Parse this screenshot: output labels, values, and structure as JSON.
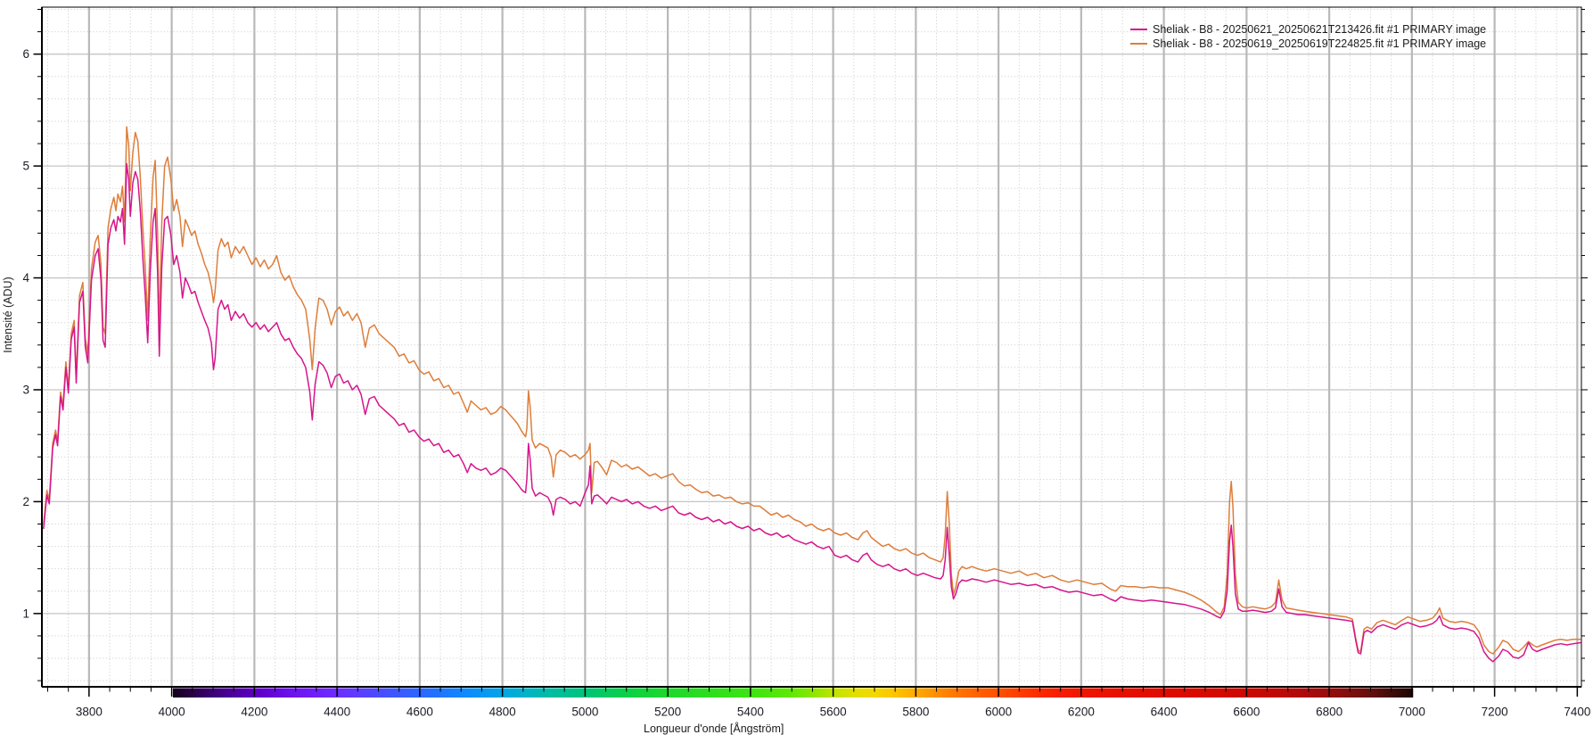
{
  "chart_data": {
    "type": "line",
    "title": "",
    "xlabel": "Longueur d'onde [Ångström]",
    "ylabel": "Intensité (ADU)",
    "xlim": [
      3686,
      7410
    ],
    "ylim": [
      0.345,
      6.42
    ],
    "x_major_step": 200,
    "x_minor_step": 50,
    "y_major_step": 1,
    "y_minor_step": 0.2,
    "x_ticks": [
      3800,
      4000,
      4200,
      4400,
      4600,
      4800,
      5000,
      5200,
      5400,
      5600,
      5800,
      6000,
      6200,
      6400,
      6600,
      6800,
      7000,
      7200,
      7400
    ],
    "y_ticks": [
      1,
      2,
      3,
      4,
      5,
      6
    ],
    "grid": {
      "major_v_color": "#b9b9b9",
      "major_h_color": "#c6c6c6",
      "minor_color": "#d2d2d2",
      "style": "major-solid-minor-dotted"
    },
    "legend_position": "top-right",
    "axis_color": "#000000",
    "tick_label_color": "#1b1b24",
    "x": [
      3690,
      3698,
      3704,
      3712,
      3719,
      3724,
      3731,
      3737,
      3744,
      3750,
      3757,
      3764,
      3769,
      3777,
      3785,
      3791,
      3797,
      3806,
      3815,
      3822,
      3829,
      3834,
      3839,
      3846,
      3853,
      3860,
      3865,
      3870,
      3876,
      3881,
      3886,
      3891,
      3896,
      3900,
      3906,
      3912,
      3918,
      3924,
      3930,
      3936,
      3942,
      3948,
      3955,
      3960,
      3966,
      3970,
      3976,
      3983,
      3990,
      3998,
      4005,
      4012,
      4020,
      4026,
      4033,
      4040,
      4048,
      4056,
      4064,
      4072,
      4080,
      4088,
      4096,
      4101,
      4105,
      4112,
      4120,
      4128,
      4136,
      4144,
      4154,
      4164,
      4174,
      4184,
      4194,
      4204,
      4214,
      4224,
      4234,
      4244,
      4254,
      4264,
      4274,
      4284,
      4294,
      4304,
      4314,
      4324,
      4334,
      4340,
      4347,
      4356,
      4366,
      4376,
      4386,
      4396,
      4406,
      4416,
      4426,
      4437,
      4448,
      4458,
      4468,
      4478,
      4490,
      4502,
      4514,
      4526,
      4538,
      4550,
      4562,
      4574,
      4586,
      4598,
      4610,
      4622,
      4634,
      4646,
      4658,
      4670,
      4682,
      4694,
      4706,
      4715,
      4724,
      4736,
      4748,
      4760,
      4772,
      4784,
      4796,
      4808,
      4822,
      4836,
      4848,
      4856,
      4859,
      4863,
      4867,
      4872,
      4880,
      4890,
      4900,
      4910,
      4918,
      4923,
      4930,
      4940,
      4952,
      4964,
      4976,
      4988,
      5000,
      5008,
      5012,
      5016,
      5022,
      5030,
      5042,
      5052,
      5064,
      5076,
      5088,
      5100,
      5114,
      5128,
      5142,
      5156,
      5170,
      5184,
      5198,
      5212,
      5226,
      5240,
      5254,
      5268,
      5282,
      5296,
      5310,
      5324,
      5338,
      5352,
      5366,
      5380,
      5394,
      5408,
      5422,
      5436,
      5450,
      5464,
      5478,
      5492,
      5506,
      5520,
      5534,
      5548,
      5562,
      5576,
      5590,
      5604,
      5618,
      5632,
      5646,
      5660,
      5672,
      5682,
      5692,
      5706,
      5720,
      5734,
      5748,
      5762,
      5776,
      5790,
      5804,
      5818,
      5832,
      5846,
      5860,
      5866,
      5871,
      5876,
      5881,
      5886,
      5891,
      5897,
      5904,
      5912,
      5922,
      5936,
      5950,
      5970,
      5990,
      6010,
      6030,
      6050,
      6070,
      6090,
      6110,
      6130,
      6150,
      6170,
      6190,
      6210,
      6230,
      6250,
      6270,
      6283,
      6296,
      6312,
      6330,
      6350,
      6370,
      6390,
      6410,
      6430,
      6450,
      6470,
      6490,
      6510,
      6525,
      6537,
      6546,
      6553,
      6559,
      6563,
      6567,
      6573,
      6580,
      6590,
      6600,
      6615,
      6630,
      6645,
      6660,
      6670,
      6678,
      6686,
      6696,
      6710,
      6725,
      6740,
      6760,
      6780,
      6800,
      6820,
      6840,
      6856,
      6864,
      6870,
      6876,
      6884,
      6892,
      6902,
      6916,
      6930,
      6945,
      6960,
      6976,
      6990,
      7005,
      7020,
      7035,
      7050,
      7060,
      7067,
      7075,
      7090,
      7105,
      7120,
      7135,
      7150,
      7162,
      7174,
      7186,
      7196,
      7210,
      7220,
      7232,
      7245,
      7258,
      7270,
      7282,
      7292,
      7302,
      7315,
      7330,
      7345,
      7360,
      7375,
      7390,
      7408
    ],
    "series": [
      {
        "name": "Sheliak - B8 - 20250621_20250621T213426.fit #1 PRIMARY image",
        "color": "#d5168c",
        "values": [
          1.76,
          2.06,
          1.98,
          2.48,
          2.6,
          2.5,
          2.94,
          2.82,
          3.2,
          2.97,
          3.45,
          3.56,
          3.06,
          3.78,
          3.88,
          3.38,
          3.24,
          3.98,
          4.2,
          4.26,
          3.98,
          3.44,
          3.38,
          4.3,
          4.45,
          4.52,
          4.42,
          4.55,
          4.5,
          4.62,
          4.3,
          5.02,
          4.88,
          4.55,
          4.85,
          4.95,
          4.88,
          4.6,
          4.18,
          3.85,
          3.42,
          4.05,
          4.5,
          4.62,
          4.05,
          3.3,
          4.1,
          4.52,
          4.55,
          4.38,
          4.12,
          4.2,
          4.05,
          3.82,
          4.0,
          3.94,
          3.86,
          3.88,
          3.78,
          3.7,
          3.62,
          3.55,
          3.42,
          3.18,
          3.28,
          3.72,
          3.8,
          3.72,
          3.76,
          3.62,
          3.7,
          3.64,
          3.68,
          3.6,
          3.56,
          3.6,
          3.54,
          3.58,
          3.52,
          3.56,
          3.6,
          3.5,
          3.44,
          3.46,
          3.38,
          3.32,
          3.28,
          3.2,
          2.98,
          2.73,
          3.05,
          3.25,
          3.22,
          3.15,
          3.02,
          3.12,
          3.14,
          3.06,
          3.08,
          3.0,
          3.04,
          2.96,
          2.78,
          2.92,
          2.94,
          2.86,
          2.82,
          2.78,
          2.74,
          2.68,
          2.7,
          2.62,
          2.64,
          2.58,
          2.54,
          2.56,
          2.5,
          2.52,
          2.44,
          2.46,
          2.4,
          2.42,
          2.34,
          2.26,
          2.34,
          2.3,
          2.28,
          2.3,
          2.24,
          2.26,
          2.3,
          2.28,
          2.22,
          2.16,
          2.1,
          2.08,
          2.2,
          2.52,
          2.38,
          2.12,
          2.05,
          2.08,
          2.06,
          2.04,
          1.98,
          1.88,
          2.02,
          2.04,
          2.02,
          1.98,
          2.0,
          1.96,
          2.08,
          2.15,
          2.32,
          1.98,
          2.05,
          2.06,
          2.02,
          1.98,
          2.04,
          2.02,
          2.0,
          2.02,
          1.98,
          2.0,
          1.96,
          1.94,
          1.96,
          1.92,
          1.94,
          1.96,
          1.9,
          1.88,
          1.9,
          1.86,
          1.84,
          1.86,
          1.82,
          1.84,
          1.8,
          1.82,
          1.78,
          1.76,
          1.78,
          1.74,
          1.76,
          1.72,
          1.7,
          1.72,
          1.68,
          1.7,
          1.66,
          1.64,
          1.62,
          1.64,
          1.6,
          1.58,
          1.6,
          1.52,
          1.5,
          1.52,
          1.48,
          1.46,
          1.52,
          1.54,
          1.48,
          1.44,
          1.42,
          1.44,
          1.4,
          1.38,
          1.4,
          1.36,
          1.34,
          1.36,
          1.34,
          1.32,
          1.31,
          1.34,
          1.48,
          1.77,
          1.52,
          1.24,
          1.13,
          1.18,
          1.27,
          1.3,
          1.29,
          1.31,
          1.3,
          1.28,
          1.3,
          1.28,
          1.26,
          1.27,
          1.25,
          1.26,
          1.23,
          1.24,
          1.21,
          1.19,
          1.2,
          1.18,
          1.16,
          1.17,
          1.13,
          1.11,
          1.15,
          1.13,
          1.12,
          1.11,
          1.12,
          1.11,
          1.1,
          1.09,
          1.08,
          1.06,
          1.04,
          1.01,
          0.98,
          0.96,
          1.02,
          1.2,
          1.65,
          1.79,
          1.6,
          1.18,
          1.04,
          1.02,
          1.02,
          1.03,
          1.02,
          1.01,
          1.02,
          1.05,
          1.22,
          1.06,
          1.01,
          1.0,
          0.99,
          0.99,
          0.98,
          0.97,
          0.96,
          0.95,
          0.94,
          0.93,
          0.76,
          0.65,
          0.64,
          0.83,
          0.85,
          0.83,
          0.88,
          0.9,
          0.88,
          0.86,
          0.9,
          0.92,
          0.9,
          0.88,
          0.89,
          0.91,
          0.94,
          0.98,
          0.9,
          0.87,
          0.86,
          0.87,
          0.86,
          0.84,
          0.78,
          0.66,
          0.6,
          0.57,
          0.62,
          0.68,
          0.66,
          0.61,
          0.6,
          0.63,
          0.74,
          0.68,
          0.66,
          0.68,
          0.7,
          0.72,
          0.73,
          0.72,
          0.73,
          0.74
        ]
      },
      {
        "name": "Sheliak - B8 - 20250619_20250619T224825.fit #1 PRIMARY image",
        "color": "#dd7e3b",
        "values": [
          1.8,
          2.1,
          2.02,
          2.52,
          2.64,
          2.54,
          2.98,
          2.86,
          3.25,
          3.02,
          3.5,
          3.62,
          3.12,
          3.84,
          3.96,
          3.46,
          3.32,
          4.08,
          4.32,
          4.38,
          4.12,
          3.56,
          3.5,
          4.45,
          4.62,
          4.72,
          4.6,
          4.75,
          4.68,
          4.82,
          4.5,
          5.35,
          5.18,
          4.78,
          5.12,
          5.3,
          5.22,
          4.9,
          4.45,
          4.1,
          3.62,
          4.35,
          4.9,
          5.05,
          4.4,
          3.55,
          4.5,
          5.0,
          5.08,
          4.88,
          4.6,
          4.7,
          4.55,
          4.28,
          4.52,
          4.46,
          4.38,
          4.42,
          4.3,
          4.22,
          4.12,
          4.05,
          3.92,
          3.78,
          3.88,
          4.25,
          4.35,
          4.28,
          4.32,
          4.18,
          4.28,
          4.22,
          4.28,
          4.2,
          4.12,
          4.18,
          4.1,
          4.16,
          4.08,
          4.12,
          4.2,
          4.05,
          3.98,
          4.02,
          3.92,
          3.85,
          3.8,
          3.72,
          3.45,
          3.18,
          3.55,
          3.82,
          3.8,
          3.72,
          3.58,
          3.7,
          3.74,
          3.66,
          3.7,
          3.62,
          3.68,
          3.6,
          3.38,
          3.55,
          3.58,
          3.5,
          3.46,
          3.42,
          3.38,
          3.3,
          3.32,
          3.24,
          3.26,
          3.18,
          3.14,
          3.16,
          3.08,
          3.1,
          3.02,
          3.04,
          2.96,
          2.98,
          2.88,
          2.8,
          2.9,
          2.86,
          2.82,
          2.84,
          2.78,
          2.8,
          2.85,
          2.82,
          2.76,
          2.7,
          2.62,
          2.58,
          2.65,
          2.99,
          2.85,
          2.55,
          2.48,
          2.52,
          2.5,
          2.48,
          2.4,
          2.22,
          2.42,
          2.46,
          2.44,
          2.4,
          2.42,
          2.38,
          2.42,
          2.46,
          2.52,
          2.08,
          2.35,
          2.36,
          2.3,
          2.24,
          2.37,
          2.35,
          2.31,
          2.33,
          2.29,
          2.31,
          2.27,
          2.23,
          2.25,
          2.21,
          2.23,
          2.25,
          2.18,
          2.14,
          2.15,
          2.11,
          2.08,
          2.09,
          2.05,
          2.06,
          2.03,
          2.04,
          2.0,
          1.98,
          1.99,
          1.96,
          1.96,
          1.92,
          1.88,
          1.9,
          1.86,
          1.88,
          1.84,
          1.82,
          1.78,
          1.8,
          1.76,
          1.74,
          1.76,
          1.72,
          1.7,
          1.72,
          1.68,
          1.66,
          1.72,
          1.74,
          1.68,
          1.64,
          1.6,
          1.62,
          1.58,
          1.56,
          1.58,
          1.54,
          1.52,
          1.54,
          1.5,
          1.48,
          1.46,
          1.5,
          1.7,
          2.09,
          1.8,
          1.35,
          1.17,
          1.24,
          1.38,
          1.42,
          1.4,
          1.42,
          1.4,
          1.38,
          1.4,
          1.38,
          1.36,
          1.38,
          1.34,
          1.36,
          1.32,
          1.34,
          1.3,
          1.28,
          1.3,
          1.28,
          1.26,
          1.27,
          1.22,
          1.2,
          1.25,
          1.24,
          1.24,
          1.23,
          1.24,
          1.23,
          1.23,
          1.21,
          1.19,
          1.16,
          1.12,
          1.07,
          1.02,
          0.99,
          1.06,
          1.35,
          2.0,
          2.18,
          1.95,
          1.35,
          1.1,
          1.06,
          1.05,
          1.06,
          1.05,
          1.04,
          1.06,
          1.1,
          1.3,
          1.12,
          1.05,
          1.04,
          1.03,
          1.02,
          1.01,
          1.0,
          0.99,
          0.98,
          0.97,
          0.95,
          0.78,
          0.67,
          0.66,
          0.86,
          0.88,
          0.86,
          0.92,
          0.94,
          0.92,
          0.9,
          0.94,
          0.97,
          0.95,
          0.93,
          0.94,
          0.96,
          1.0,
          1.05,
          0.96,
          0.93,
          0.92,
          0.93,
          0.92,
          0.9,
          0.84,
          0.72,
          0.66,
          0.64,
          0.7,
          0.76,
          0.74,
          0.68,
          0.66,
          0.7,
          0.75,
          0.72,
          0.7,
          0.72,
          0.74,
          0.76,
          0.77,
          0.76,
          0.77,
          0.77
        ]
      }
    ],
    "colorbar": {
      "from": 4003,
      "to": 7003,
      "stops": [
        [
          4003,
          "#14001c"
        ],
        [
          4050,
          "#2a0045"
        ],
        [
          4100,
          "#3c0078"
        ],
        [
          4150,
          "#4d009e"
        ],
        [
          4200,
          "#5c00c0"
        ],
        [
          4250,
          "#6607dd"
        ],
        [
          4300,
          "#6d14ef"
        ],
        [
          4350,
          "#6f20fa"
        ],
        [
          4400,
          "#6c2cff"
        ],
        [
          4450,
          "#5e3cff"
        ],
        [
          4500,
          "#4c4bff"
        ],
        [
          4550,
          "#3b5aff"
        ],
        [
          4600,
          "#2c66ff"
        ],
        [
          4650,
          "#1f75ff"
        ],
        [
          4700,
          "#1286ff"
        ],
        [
          4750,
          "#0996f5"
        ],
        [
          4800,
          "#04a5e4"
        ],
        [
          4850,
          "#01b2cb"
        ],
        [
          4900,
          "#00baac"
        ],
        [
          4950,
          "#00bf92"
        ],
        [
          5000,
          "#00c379"
        ],
        [
          5050,
          "#06ca5e"
        ],
        [
          5100,
          "#0ccf48"
        ],
        [
          5150,
          "#16d438"
        ],
        [
          5200,
          "#1fd72c"
        ],
        [
          5300,
          "#2edd20"
        ],
        [
          5400,
          "#3ee314"
        ],
        [
          5500,
          "#60e805"
        ],
        [
          5550,
          "#8ce600"
        ],
        [
          5600,
          "#bfe400"
        ],
        [
          5650,
          "#e0e000"
        ],
        [
          5700,
          "#f4d800"
        ],
        [
          5750,
          "#fec300"
        ],
        [
          5800,
          "#ffa900"
        ],
        [
          5850,
          "#ff8e00"
        ],
        [
          5900,
          "#ff7400"
        ],
        [
          5950,
          "#ff6000"
        ],
        [
          6000,
          "#ff5000"
        ],
        [
          6050,
          "#fd3d00"
        ],
        [
          6100,
          "#fa2b00"
        ],
        [
          6150,
          "#f51e00"
        ],
        [
          6200,
          "#f01600"
        ],
        [
          6300,
          "#e61000"
        ],
        [
          6400,
          "#de0c00"
        ],
        [
          6500,
          "#d60a00"
        ],
        [
          6600,
          "#cb0900"
        ],
        [
          6650,
          "#c30904"
        ],
        [
          6700,
          "#b70a08"
        ],
        [
          6750,
          "#a80c0c"
        ],
        [
          6800,
          "#970d0d"
        ],
        [
          6850,
          "#7f0f0e"
        ],
        [
          6900,
          "#62100e"
        ],
        [
          6950,
          "#400c0a"
        ],
        [
          7003,
          "#1c0504"
        ]
      ]
    }
  }
}
